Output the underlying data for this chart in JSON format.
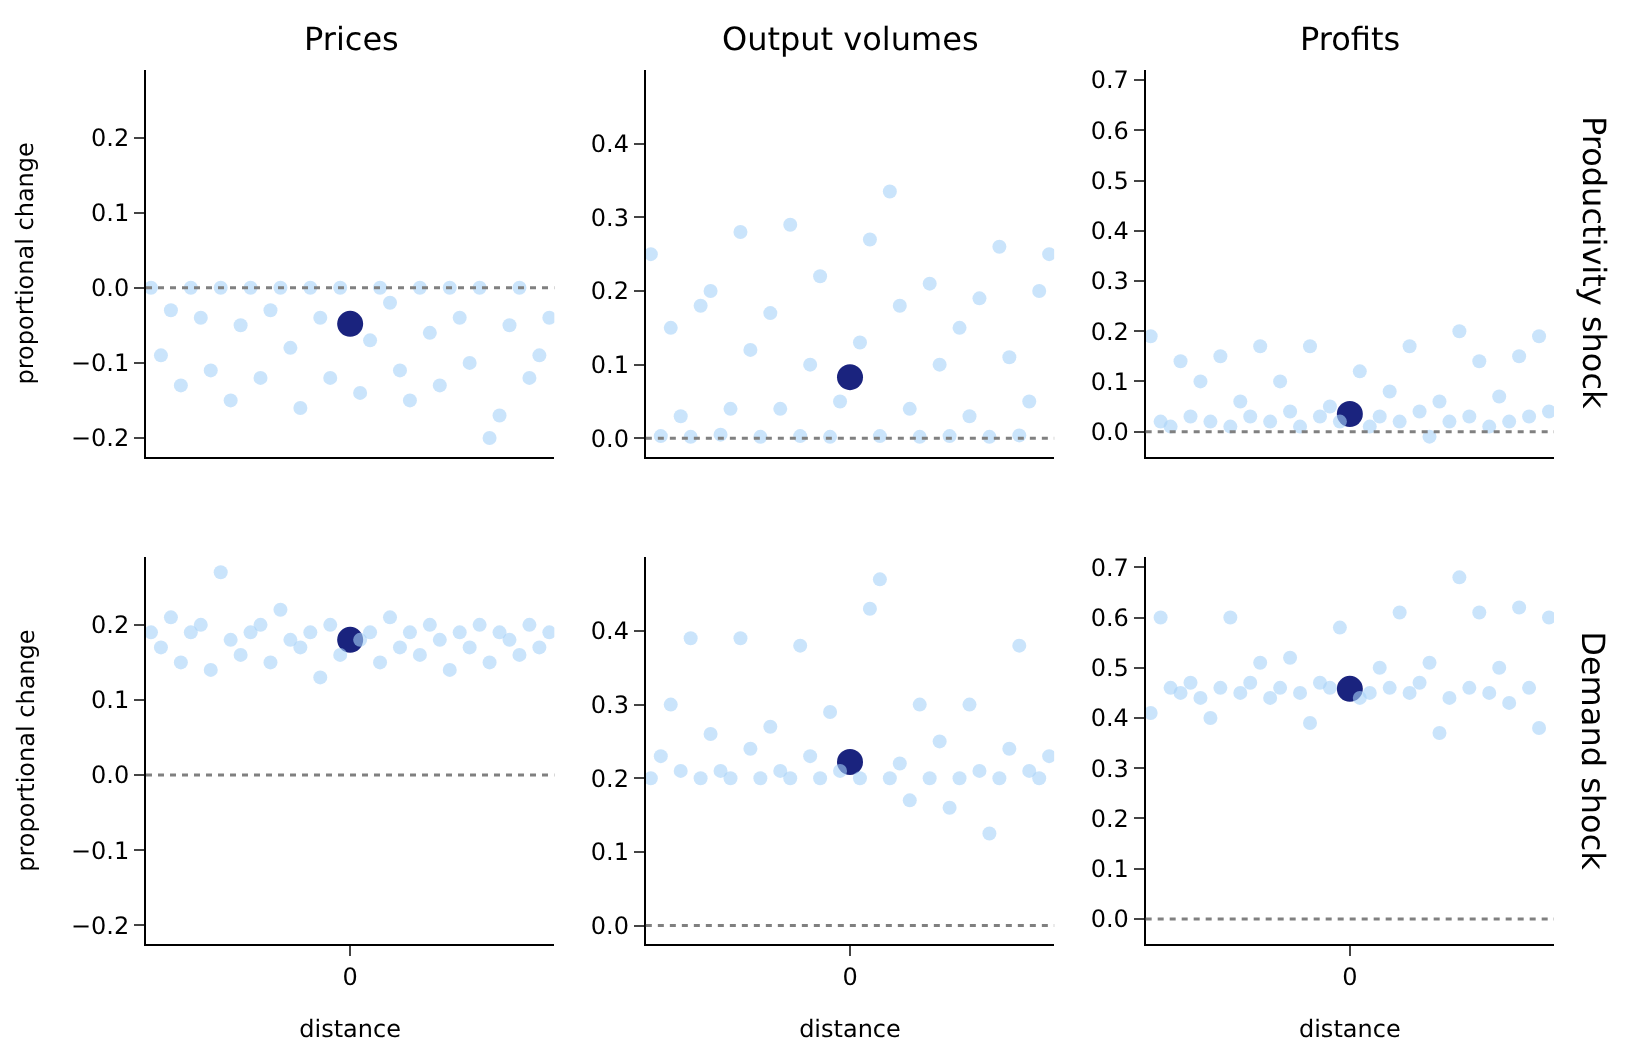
{
  "chart_data": [
    {
      "type": "scatter",
      "title": "Prices",
      "ylabel": "proportional change",
      "categories": [
        null,
        null,
        null,
        null,
        null,
        null,
        null,
        null,
        null,
        null,
        null,
        null,
        null,
        null,
        null,
        null,
        null,
        null,
        null,
        null,
        null,
        null,
        null,
        null,
        null,
        null,
        null,
        null,
        null,
        null,
        null,
        null,
        null,
        null,
        null,
        null,
        null,
        null,
        null,
        null,
        null
      ],
      "ylim": [
        -0.225,
        0.29
      ],
      "yticks": [
        {
          "value": -0.2,
          "label": "−0.2"
        },
        {
          "value": -0.1,
          "label": "−0.1"
        },
        {
          "value": 0,
          "label": "0.0"
        },
        {
          "value": 0.1,
          "label": "0.1"
        },
        {
          "value": 0.2,
          "label": "0.2"
        }
      ],
      "tick_labels": "y",
      "marker": "circle",
      "ref_lines": [
        {
          "axis": "y",
          "value": 0,
          "color": "#808080",
          "line_style": "dotted"
        }
      ],
      "series": [
        {
          "color": "#a6d2f8",
          "values": [
            0,
            -0.09,
            -0.03,
            -0.13,
            0,
            -0.04,
            -0.11,
            0,
            -0.15,
            -0.05,
            0,
            -0.12,
            -0.03,
            0,
            -0.08,
            -0.16,
            0,
            -0.04,
            -0.12,
            0,
            null,
            -0.14,
            -0.07,
            0,
            -0.02,
            -0.11,
            -0.15,
            0,
            -0.06,
            -0.13,
            0,
            -0.04,
            -0.1,
            0,
            -0.2,
            -0.17,
            -0.05,
            0,
            -0.12,
            -0.09,
            -0.04
          ]
        },
        {
          "color": "#1a237e",
          "values": [
            null,
            null,
            null,
            null,
            null,
            null,
            null,
            null,
            null,
            null,
            null,
            null,
            null,
            null,
            null,
            null,
            null,
            null,
            null,
            null,
            -0.048,
            null,
            null,
            null,
            null,
            null,
            null,
            null,
            null,
            null,
            null,
            null,
            null,
            null,
            null,
            null,
            null,
            null,
            null,
            null,
            null
          ]
        }
      ]
    },
    {
      "type": "scatter",
      "title": "Output volumes",
      "categories": [
        null,
        null,
        null,
        null,
        null,
        null,
        null,
        null,
        null,
        null,
        null,
        null,
        null,
        null,
        null,
        null,
        null,
        null,
        null,
        null,
        null,
        null,
        null,
        null,
        null,
        null,
        null,
        null,
        null,
        null,
        null,
        null,
        null,
        null,
        null,
        null,
        null,
        null,
        null,
        null,
        null
      ],
      "ylim": [
        -0.025,
        0.5
      ],
      "yticks": [
        {
          "value": 0,
          "label": "0.0"
        },
        {
          "value": 0.1,
          "label": "0.1"
        },
        {
          "value": 0.2,
          "label": "0.2"
        },
        {
          "value": 0.3,
          "label": "0.3"
        },
        {
          "value": 0.4,
          "label": "0.4"
        }
      ],
      "tick_labels": "y",
      "marker": "circle",
      "ref_lines": [
        {
          "axis": "y",
          "value": 0,
          "color": "#808080",
          "line_style": "dotted"
        }
      ],
      "series": [
        {
          "color": "#a6d2f8",
          "values": [
            0.25,
            0.003,
            0.15,
            0.03,
            0.002,
            0.18,
            0.2,
            0.005,
            0.04,
            0.28,
            0.12,
            0.002,
            0.17,
            0.04,
            0.29,
            0.003,
            0.1,
            0.22,
            0.002,
            0.05,
            null,
            0.13,
            0.27,
            0.003,
            0.335,
            0.18,
            0.04,
            0.002,
            0.21,
            0.1,
            0.003,
            0.15,
            0.03,
            0.19,
            0.002,
            0.26,
            0.11,
            0.004,
            0.05,
            0.2,
            0.25
          ]
        },
        {
          "color": "#1a237e",
          "values": [
            null,
            null,
            null,
            null,
            null,
            null,
            null,
            null,
            null,
            null,
            null,
            null,
            null,
            null,
            null,
            null,
            null,
            null,
            null,
            null,
            0.083,
            null,
            null,
            null,
            null,
            null,
            null,
            null,
            null,
            null,
            null,
            null,
            null,
            null,
            null,
            null,
            null,
            null,
            null,
            null,
            null
          ]
        }
      ]
    },
    {
      "type": "scatter",
      "title": "Profits",
      "categories": [
        null,
        null,
        null,
        null,
        null,
        null,
        null,
        null,
        null,
        null,
        null,
        null,
        null,
        null,
        null,
        null,
        null,
        null,
        null,
        null,
        null,
        null,
        null,
        null,
        null,
        null,
        null,
        null,
        null,
        null,
        null,
        null,
        null,
        null,
        null,
        null,
        null,
        null,
        null,
        null,
        null
      ],
      "ylim": [
        -0.05,
        0.72
      ],
      "yticks": [
        {
          "value": 0,
          "label": "0.0"
        },
        {
          "value": 0.1,
          "label": "0.1"
        },
        {
          "value": 0.2,
          "label": "0.2"
        },
        {
          "value": 0.3,
          "label": "0.3"
        },
        {
          "value": 0.4,
          "label": "0.4"
        },
        {
          "value": 0.5,
          "label": "0.5"
        },
        {
          "value": 0.6,
          "label": "0.6"
        },
        {
          "value": 0.7,
          "label": "0.7"
        }
      ],
      "tick_labels": "y",
      "marker": "circle",
      "annotations": [
        "Productivity shock"
      ],
      "ref_lines": [
        {
          "axis": "y",
          "value": 0,
          "color": "#808080",
          "line_style": "dotted"
        }
      ],
      "series": [
        {
          "color": "#a6d2f8",
          "values": [
            0.19,
            0.02,
            0.01,
            0.14,
            0.03,
            0.1,
            0.02,
            0.15,
            0.01,
            0.06,
            0.03,
            0.17,
            0.02,
            0.1,
            0.04,
            0.01,
            0.17,
            0.03,
            0.05,
            0.02,
            null,
            0.12,
            0.01,
            0.03,
            0.08,
            0.02,
            0.17,
            0.04,
            -0.01,
            0.06,
            0.02,
            0.2,
            0.03,
            0.14,
            0.01,
            0.07,
            0.02,
            0.15,
            0.03,
            0.19,
            0.04
          ]
        },
        {
          "color": "#1a237e",
          "values": [
            null,
            null,
            null,
            null,
            null,
            null,
            null,
            null,
            null,
            null,
            null,
            null,
            null,
            null,
            null,
            null,
            null,
            null,
            null,
            null,
            0.035,
            null,
            null,
            null,
            null,
            null,
            null,
            null,
            null,
            null,
            null,
            null,
            null,
            null,
            null,
            null,
            null,
            null,
            null,
            null,
            null
          ]
        }
      ]
    },
    {
      "type": "scatter",
      "xlabel": "distance",
      "ylabel": "proportional change",
      "categories": [
        null,
        null,
        null,
        null,
        null,
        null,
        null,
        null,
        null,
        null,
        null,
        null,
        null,
        null,
        null,
        null,
        null,
        null,
        null,
        null,
        "0",
        null,
        null,
        null,
        null,
        null,
        null,
        null,
        null,
        null,
        null,
        null,
        null,
        null,
        null,
        null,
        null,
        null,
        null,
        null,
        null
      ],
      "ylim": [
        -0.225,
        0.29
      ],
      "yticks": [
        {
          "value": -0.2,
          "label": "−0.2"
        },
        {
          "value": -0.1,
          "label": "−0.1"
        },
        {
          "value": 0,
          "label": "0.0"
        },
        {
          "value": 0.1,
          "label": "0.1"
        },
        {
          "value": 0.2,
          "label": "0.2"
        }
      ],
      "marker": "circle",
      "ref_lines": [
        {
          "axis": "y",
          "value": 0,
          "color": "#808080",
          "line_style": "dotted"
        }
      ],
      "series": [
        {
          "color": "#a6d2f8",
          "values": [
            0.19,
            0.17,
            0.21,
            0.15,
            0.19,
            0.2,
            0.14,
            0.27,
            0.18,
            0.16,
            0.19,
            0.2,
            0.15,
            0.22,
            0.18,
            0.17,
            0.19,
            0.13,
            0.2,
            0.16,
            null,
            0.18,
            0.19,
            0.15,
            0.21,
            0.17,
            0.19,
            0.16,
            0.2,
            0.18,
            0.14,
            0.19,
            0.17,
            0.2,
            0.15,
            0.19,
            0.18,
            0.16,
            0.2,
            0.17,
            0.19
          ]
        },
        {
          "color": "#1a237e",
          "values": [
            null,
            null,
            null,
            null,
            null,
            null,
            null,
            null,
            null,
            null,
            null,
            null,
            null,
            null,
            null,
            null,
            null,
            null,
            null,
            null,
            0.18,
            null,
            null,
            null,
            null,
            null,
            null,
            null,
            null,
            null,
            null,
            null,
            null,
            null,
            null,
            null,
            null,
            null,
            null,
            null,
            null
          ]
        }
      ]
    },
    {
      "type": "scatter",
      "xlabel": "distance",
      "categories": [
        null,
        null,
        null,
        null,
        null,
        null,
        null,
        null,
        null,
        null,
        null,
        null,
        null,
        null,
        null,
        null,
        null,
        null,
        null,
        null,
        "0",
        null,
        null,
        null,
        null,
        null,
        null,
        null,
        null,
        null,
        null,
        null,
        null,
        null,
        null,
        null,
        null,
        null,
        null,
        null,
        null
      ],
      "ylim": [
        -0.025,
        0.5
      ],
      "yticks": [
        {
          "value": 0,
          "label": "0.0"
        },
        {
          "value": 0.1,
          "label": "0.1"
        },
        {
          "value": 0.2,
          "label": "0.2"
        },
        {
          "value": 0.3,
          "label": "0.3"
        },
        {
          "value": 0.4,
          "label": "0.4"
        }
      ],
      "marker": "circle",
      "ref_lines": [
        {
          "axis": "y",
          "value": 0,
          "color": "#808080",
          "line_style": "dotted"
        }
      ],
      "series": [
        {
          "color": "#a6d2f8",
          "values": [
            0.2,
            0.23,
            0.3,
            0.21,
            0.39,
            0.2,
            0.26,
            0.21,
            0.2,
            0.39,
            0.24,
            0.2,
            0.27,
            0.21,
            0.2,
            0.38,
            0.23,
            0.2,
            0.29,
            0.21,
            null,
            0.2,
            0.43,
            0.47,
            0.2,
            0.22,
            0.17,
            0.3,
            0.2,
            0.25,
            0.16,
            0.2,
            0.3,
            0.21,
            0.125,
            0.2,
            0.24,
            0.38,
            0.21,
            0.2,
            0.23
          ]
        },
        {
          "color": "#1a237e",
          "values": [
            null,
            null,
            null,
            null,
            null,
            null,
            null,
            null,
            null,
            null,
            null,
            null,
            null,
            null,
            null,
            null,
            null,
            null,
            null,
            null,
            0.222,
            null,
            null,
            null,
            null,
            null,
            null,
            null,
            null,
            null,
            null,
            null,
            null,
            null,
            null,
            null,
            null,
            null,
            null,
            null,
            null
          ]
        }
      ]
    },
    {
      "type": "scatter",
      "xlabel": "distance",
      "categories": [
        null,
        null,
        null,
        null,
        null,
        null,
        null,
        null,
        null,
        null,
        null,
        null,
        null,
        null,
        null,
        null,
        null,
        null,
        null,
        null,
        "0",
        null,
        null,
        null,
        null,
        null,
        null,
        null,
        null,
        null,
        null,
        null,
        null,
        null,
        null,
        null,
        null,
        null,
        null,
        null,
        null
      ],
      "ylim": [
        -0.05,
        0.72
      ],
      "yticks": [
        {
          "value": 0,
          "label": "0.0"
        },
        {
          "value": 0.1,
          "label": "0.1"
        },
        {
          "value": 0.2,
          "label": "0.2"
        },
        {
          "value": 0.3,
          "label": "0.3"
        },
        {
          "value": 0.4,
          "label": "0.4"
        },
        {
          "value": 0.5,
          "label": "0.5"
        },
        {
          "value": 0.6,
          "label": "0.6"
        },
        {
          "value": 0.7,
          "label": "0.7"
        }
      ],
      "marker": "circle",
      "annotations": [
        "Demand shock"
      ],
      "ref_lines": [
        {
          "axis": "y",
          "value": 0,
          "color": "#808080",
          "line_style": "dotted"
        }
      ],
      "series": [
        {
          "color": "#a6d2f8",
          "values": [
            0.41,
            0.6,
            0.46,
            0.45,
            0.47,
            0.44,
            0.4,
            0.46,
            0.6,
            0.45,
            0.47,
            0.51,
            0.44,
            0.46,
            0.52,
            0.45,
            0.39,
            0.47,
            0.46,
            0.58,
            null,
            0.44,
            0.45,
            0.5,
            0.46,
            0.61,
            0.45,
            0.47,
            0.51,
            0.37,
            0.44,
            0.68,
            0.46,
            0.61,
            0.45,
            0.5,
            0.43,
            0.62,
            0.46,
            0.38,
            0.6
          ]
        },
        {
          "color": "#1a237e",
          "values": [
            null,
            null,
            null,
            null,
            null,
            null,
            null,
            null,
            null,
            null,
            null,
            null,
            null,
            null,
            null,
            null,
            null,
            null,
            null,
            null,
            0.458,
            null,
            null,
            null,
            null,
            null,
            null,
            null,
            null,
            null,
            null,
            null,
            null,
            null,
            null,
            null,
            null,
            null,
            null,
            null,
            null
          ]
        }
      ]
    }
  ]
}
